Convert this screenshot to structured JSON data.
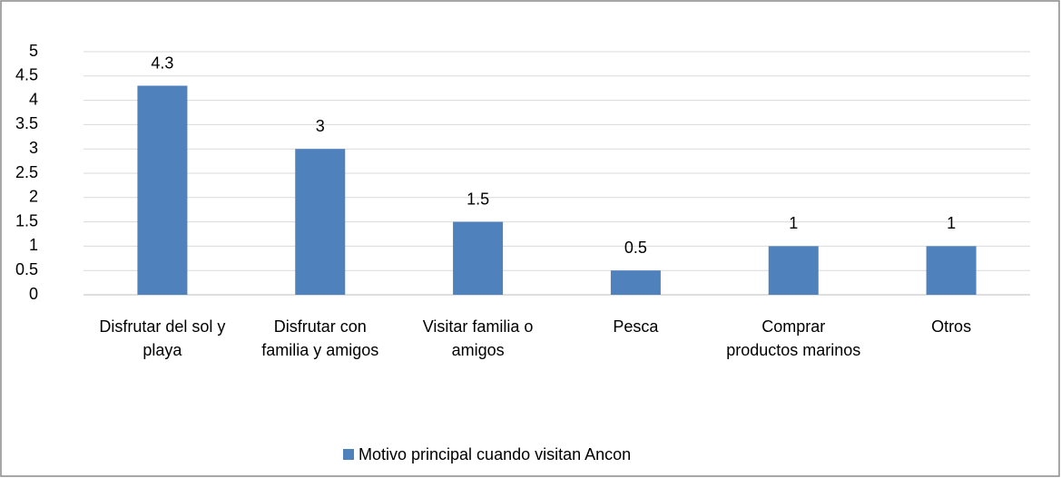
{
  "chart_data": {
    "type": "bar",
    "categories": [
      "Disfrutar del sol y playa",
      "Disfrutar con familia y amigos",
      "Visitar familia o amigos",
      "Pesca",
      "Comprar productos marinos",
      "Otros"
    ],
    "series": [
      {
        "name": "Motivo principal cuando visitan Ancon",
        "color": "#4f81bd",
        "values": [
          4.3,
          3,
          1.5,
          0.5,
          1,
          1
        ]
      }
    ],
    "ylim": [
      0,
      5
    ],
    "yticks": [
      0,
      0.5,
      1,
      1.5,
      2,
      2.5,
      3,
      3.5,
      4,
      4.5,
      5
    ],
    "grid": true,
    "legend": "bottom"
  }
}
